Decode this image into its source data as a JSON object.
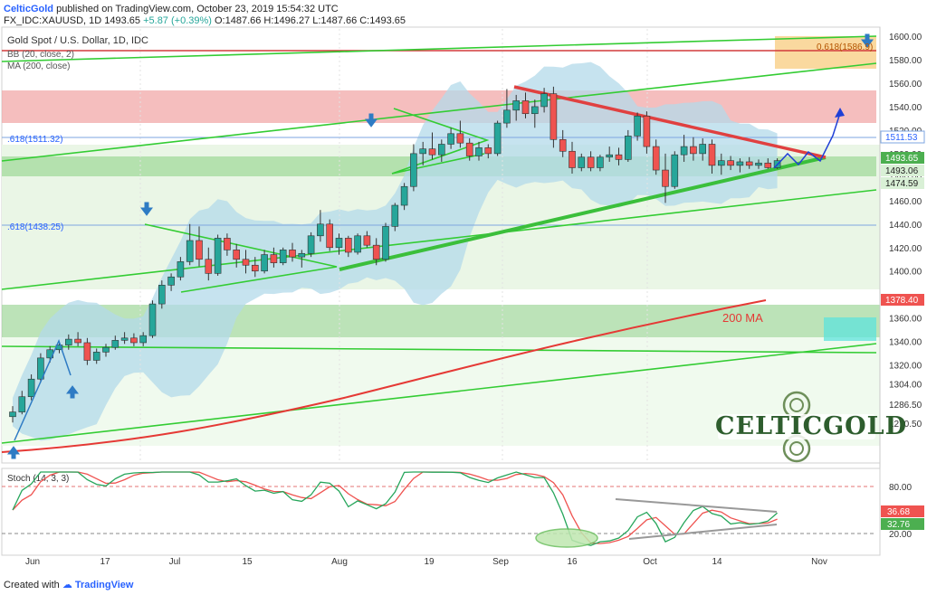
{
  "header": {
    "publisher": "CelticGold",
    "published_text": "published on TradingView.com, October 23, 2019 15:54:32 UTC",
    "symbol": "FX_IDC:XAUUSD, 1D",
    "price": "1493.65",
    "change": "+5.87 (+0.39%)",
    "ohlc": "O:1487.66 H:1496.27 L:1487.66 C:1493.65"
  },
  "legend": {
    "title": "Gold Spot / U.S. Dollar, 1D, IDC",
    "bb": "BB (20, close, 2)",
    "ma": "MA (200, close)",
    "ma_label": "200 MA"
  },
  "fib_labels": {
    "f1": ".618(1511.32)",
    "f2": ".618(1438.25)",
    "f3": "0.618(1586.9)"
  },
  "price_badges": {
    "b1": "1511.53",
    "b2": "1493.65",
    "b3": "1493.06",
    "b4": "1474.59",
    "b5": "1378.40"
  },
  "stoch": {
    "title": "Stoch (14, 3, 3)",
    "axis": [
      "80.00",
      "20.00"
    ],
    "k_badge": "36.68",
    "d_badge": "32.76"
  },
  "footer": {
    "created": "Created with",
    "brand": "TradingView"
  },
  "logo": {
    "text": "CELTICGOLD"
  },
  "colors": {
    "up": "#26a69a",
    "down": "#ef5350",
    "bb_fill": "#b3d9ea",
    "ma": "#e53935",
    "trend": "#33cc33",
    "k_line": "#26a65b",
    "d_line": "#ef5350"
  },
  "chart_data": {
    "type": "candlestick",
    "title": "Gold Spot / U.S. Dollar, 1D, IDC",
    "x_tick_labels": [
      "Jun",
      "17",
      "Jul",
      "15",
      "Aug",
      "19",
      "Sep",
      "16",
      "Oct",
      "14",
      "Nov"
    ],
    "y_tick_labels": [
      1600,
      1580,
      1560,
      1540,
      1520,
      1500,
      1480,
      1460,
      1440,
      1420,
      1400,
      1378.4,
      1360,
      1340,
      1320,
      1304,
      1286.5,
      1270.5
    ],
    "ylim": [
      1262,
      1602
    ],
    "candles": [
      {
        "o": 1276,
        "h": 1285,
        "l": 1271,
        "c": 1280
      },
      {
        "o": 1280,
        "h": 1298,
        "l": 1278,
        "c": 1293
      },
      {
        "o": 1293,
        "h": 1312,
        "l": 1290,
        "c": 1308
      },
      {
        "o": 1308,
        "h": 1330,
        "l": 1305,
        "c": 1326
      },
      {
        "o": 1326,
        "h": 1336,
        "l": 1322,
        "c": 1333
      },
      {
        "o": 1333,
        "h": 1340,
        "l": 1330,
        "c": 1337
      },
      {
        "o": 1337,
        "h": 1346,
        "l": 1333,
        "c": 1342
      },
      {
        "o": 1342,
        "h": 1348,
        "l": 1336,
        "c": 1339
      },
      {
        "o": 1339,
        "h": 1343,
        "l": 1320,
        "c": 1324
      },
      {
        "o": 1324,
        "h": 1334,
        "l": 1321,
        "c": 1331
      },
      {
        "o": 1331,
        "h": 1338,
        "l": 1327,
        "c": 1335
      },
      {
        "o": 1335,
        "h": 1345,
        "l": 1333,
        "c": 1341
      },
      {
        "o": 1341,
        "h": 1348,
        "l": 1338,
        "c": 1343
      },
      {
        "o": 1343,
        "h": 1347,
        "l": 1336,
        "c": 1339
      },
      {
        "o": 1339,
        "h": 1348,
        "l": 1336,
        "c": 1345
      },
      {
        "o": 1345,
        "h": 1375,
        "l": 1343,
        "c": 1372
      },
      {
        "o": 1372,
        "h": 1392,
        "l": 1368,
        "c": 1388
      },
      {
        "o": 1388,
        "h": 1398,
        "l": 1383,
        "c": 1395
      },
      {
        "o": 1395,
        "h": 1412,
        "l": 1392,
        "c": 1408
      },
      {
        "o": 1408,
        "h": 1440,
        "l": 1405,
        "c": 1426
      },
      {
        "o": 1426,
        "h": 1438,
        "l": 1404,
        "c": 1410
      },
      {
        "o": 1410,
        "h": 1420,
        "l": 1392,
        "c": 1398
      },
      {
        "o": 1398,
        "h": 1431,
        "l": 1396,
        "c": 1428
      },
      {
        "o": 1428,
        "h": 1432,
        "l": 1413,
        "c": 1418
      },
      {
        "o": 1418,
        "h": 1423,
        "l": 1403,
        "c": 1410
      },
      {
        "o": 1410,
        "h": 1418,
        "l": 1398,
        "c": 1405
      },
      {
        "o": 1405,
        "h": 1412,
        "l": 1395,
        "c": 1400
      },
      {
        "o": 1400,
        "h": 1418,
        "l": 1398,
        "c": 1414
      },
      {
        "o": 1414,
        "h": 1420,
        "l": 1403,
        "c": 1407
      },
      {
        "o": 1407,
        "h": 1420,
        "l": 1405,
        "c": 1418
      },
      {
        "o": 1418,
        "h": 1424,
        "l": 1408,
        "c": 1412
      },
      {
        "o": 1412,
        "h": 1418,
        "l": 1403,
        "c": 1415
      },
      {
        "o": 1415,
        "h": 1433,
        "l": 1412,
        "c": 1430
      },
      {
        "o": 1430,
        "h": 1452,
        "l": 1425,
        "c": 1440
      },
      {
        "o": 1440,
        "h": 1444,
        "l": 1417,
        "c": 1420
      },
      {
        "o": 1420,
        "h": 1432,
        "l": 1414,
        "c": 1428
      },
      {
        "o": 1428,
        "h": 1430,
        "l": 1412,
        "c": 1416
      },
      {
        "o": 1416,
        "h": 1432,
        "l": 1414,
        "c": 1430
      },
      {
        "o": 1430,
        "h": 1434,
        "l": 1420,
        "c": 1422
      },
      {
        "o": 1422,
        "h": 1428,
        "l": 1405,
        "c": 1410
      },
      {
        "o": 1410,
        "h": 1441,
        "l": 1408,
        "c": 1438
      },
      {
        "o": 1438,
        "h": 1458,
        "l": 1434,
        "c": 1456
      },
      {
        "o": 1456,
        "h": 1475,
        "l": 1452,
        "c": 1472
      },
      {
        "o": 1472,
        "h": 1508,
        "l": 1468,
        "c": 1500
      },
      {
        "o": 1500,
        "h": 1510,
        "l": 1490,
        "c": 1504
      },
      {
        "o": 1504,
        "h": 1518,
        "l": 1495,
        "c": 1499
      },
      {
        "o": 1499,
        "h": 1512,
        "l": 1493,
        "c": 1508
      },
      {
        "o": 1508,
        "h": 1522,
        "l": 1504,
        "c": 1517
      },
      {
        "o": 1517,
        "h": 1528,
        "l": 1505,
        "c": 1509
      },
      {
        "o": 1509,
        "h": 1513,
        "l": 1494,
        "c": 1498
      },
      {
        "o": 1498,
        "h": 1510,
        "l": 1494,
        "c": 1505
      },
      {
        "o": 1505,
        "h": 1508,
        "l": 1496,
        "c": 1500
      },
      {
        "o": 1500,
        "h": 1528,
        "l": 1498,
        "c": 1526
      },
      {
        "o": 1526,
        "h": 1555,
        "l": 1522,
        "c": 1537
      },
      {
        "o": 1537,
        "h": 1550,
        "l": 1528,
        "c": 1545
      },
      {
        "o": 1545,
        "h": 1552,
        "l": 1530,
        "c": 1534
      },
      {
        "o": 1534,
        "h": 1546,
        "l": 1522,
        "c": 1540
      },
      {
        "o": 1540,
        "h": 1556,
        "l": 1535,
        "c": 1551
      },
      {
        "o": 1551,
        "h": 1557,
        "l": 1505,
        "c": 1512
      },
      {
        "o": 1512,
        "h": 1520,
        "l": 1497,
        "c": 1502
      },
      {
        "o": 1502,
        "h": 1510,
        "l": 1483,
        "c": 1488
      },
      {
        "o": 1488,
        "h": 1500,
        "l": 1485,
        "c": 1497
      },
      {
        "o": 1497,
        "h": 1502,
        "l": 1485,
        "c": 1488
      },
      {
        "o": 1488,
        "h": 1499,
        "l": 1485,
        "c": 1497
      },
      {
        "o": 1497,
        "h": 1506,
        "l": 1493,
        "c": 1499
      },
      {
        "o": 1499,
        "h": 1505,
        "l": 1490,
        "c": 1495
      },
      {
        "o": 1495,
        "h": 1520,
        "l": 1493,
        "c": 1515
      },
      {
        "o": 1515,
        "h": 1535,
        "l": 1511,
        "c": 1532
      },
      {
        "o": 1532,
        "h": 1536,
        "l": 1500,
        "c": 1506
      },
      {
        "o": 1506,
        "h": 1512,
        "l": 1482,
        "c": 1486
      },
      {
        "o": 1486,
        "h": 1500,
        "l": 1458,
        "c": 1472
      },
      {
        "o": 1472,
        "h": 1502,
        "l": 1470,
        "c": 1499
      },
      {
        "o": 1499,
        "h": 1516,
        "l": 1493,
        "c": 1506
      },
      {
        "o": 1506,
        "h": 1514,
        "l": 1494,
        "c": 1500
      },
      {
        "o": 1500,
        "h": 1513,
        "l": 1494,
        "c": 1508
      },
      {
        "o": 1508,
        "h": 1512,
        "l": 1483,
        "c": 1490
      },
      {
        "o": 1490,
        "h": 1500,
        "l": 1482,
        "c": 1494
      },
      {
        "o": 1494,
        "h": 1498,
        "l": 1486,
        "c": 1490
      },
      {
        "o": 1490,
        "h": 1496,
        "l": 1484,
        "c": 1493
      },
      {
        "o": 1493,
        "h": 1497,
        "l": 1487,
        "c": 1490
      },
      {
        "o": 1490,
        "h": 1495,
        "l": 1487,
        "c": 1492
      },
      {
        "o": 1492,
        "h": 1496,
        "l": 1487,
        "c": 1488
      },
      {
        "o": 1488,
        "h": 1496,
        "l": 1487,
        "c": 1494
      }
    ]
  }
}
